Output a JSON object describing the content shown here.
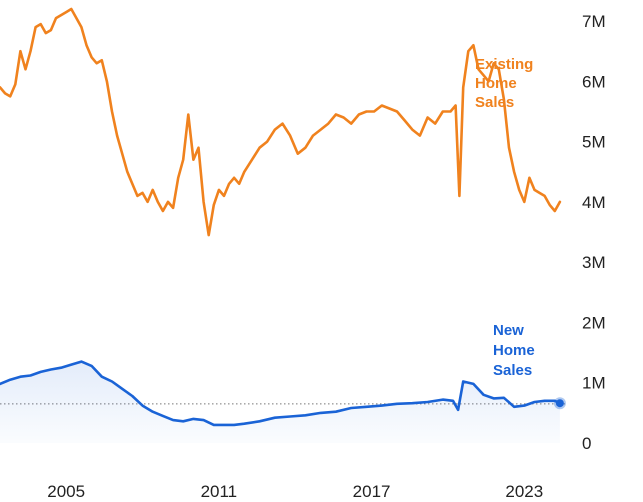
{
  "chart_data": {
    "type": "line",
    "x_unit": "year",
    "xlim": [
      2002.4,
      2024.6
    ],
    "ylim": [
      0,
      7.35
    ],
    "y_unit": "millions",
    "x_ticks": [
      {
        "value": 2005,
        "label": "2005"
      },
      {
        "value": 2011,
        "label": "2011"
      },
      {
        "value": 2017,
        "label": "2017"
      },
      {
        "value": 2023,
        "label": "2023"
      }
    ],
    "y_ticks": [
      {
        "value": 0,
        "label": "0"
      },
      {
        "value": 1,
        "label": "1M"
      },
      {
        "value": 2,
        "label": "2M"
      },
      {
        "value": 3,
        "label": "3M"
      },
      {
        "value": 4,
        "label": "4M"
      },
      {
        "value": 5,
        "label": "5M"
      },
      {
        "value": 6,
        "label": "6M"
      },
      {
        "value": 7,
        "label": "7M"
      }
    ],
    "reference_line": {
      "value": 0.65,
      "style": "dotted"
    },
    "series": [
      {
        "name": "Existing Home Sales",
        "label_lines": [
          "Existing",
          "Home",
          "Sales"
        ],
        "color": "#f0821e",
        "x": [
          2002.4,
          2002.6,
          2002.8,
          2003.0,
          2003.2,
          2003.4,
          2003.6,
          2003.8,
          2004.0,
          2004.2,
          2004.4,
          2004.6,
          2004.8,
          2005.0,
          2005.2,
          2005.4,
          2005.6,
          2005.8,
          2006.0,
          2006.2,
          2006.4,
          2006.6,
          2006.8,
          2007.0,
          2007.2,
          2007.4,
          2007.6,
          2007.8,
          2008.0,
          2008.2,
          2008.4,
          2008.6,
          2008.8,
          2009.0,
          2009.2,
          2009.4,
          2009.6,
          2009.8,
          2010.0,
          2010.2,
          2010.4,
          2010.6,
          2010.8,
          2011.0,
          2011.2,
          2011.4,
          2011.6,
          2011.8,
          2012.0,
          2012.3,
          2012.6,
          2012.9,
          2013.2,
          2013.5,
          2013.8,
          2014.1,
          2014.4,
          2014.7,
          2015.0,
          2015.3,
          2015.6,
          2015.9,
          2016.2,
          2016.5,
          2016.8,
          2017.1,
          2017.4,
          2017.7,
          2018.0,
          2018.3,
          2018.6,
          2018.9,
          2019.2,
          2019.5,
          2019.8,
          2020.1,
          2020.3,
          2020.45,
          2020.6,
          2020.8,
          2021.0,
          2021.2,
          2021.4,
          2021.6,
          2021.8,
          2022.0,
          2022.2,
          2022.4,
          2022.6,
          2022.8,
          2023.0,
          2023.2,
          2023.4,
          2023.6,
          2023.8,
          2024.0,
          2024.2,
          2024.4
        ],
        "values": [
          5.9,
          5.8,
          5.75,
          5.95,
          6.5,
          6.2,
          6.5,
          6.9,
          6.95,
          6.8,
          6.85,
          7.05,
          7.1,
          7.15,
          7.2,
          7.05,
          6.9,
          6.6,
          6.4,
          6.3,
          6.35,
          6.0,
          5.5,
          5.1,
          4.8,
          4.5,
          4.3,
          4.1,
          4.15,
          4.0,
          4.2,
          4.0,
          3.85,
          4.0,
          3.9,
          4.4,
          4.7,
          5.45,
          4.7,
          4.9,
          4.0,
          3.45,
          3.95,
          4.2,
          4.1,
          4.3,
          4.4,
          4.3,
          4.5,
          4.7,
          4.9,
          5.0,
          5.2,
          5.3,
          5.1,
          4.8,
          4.9,
          5.1,
          5.2,
          5.3,
          5.45,
          5.4,
          5.3,
          5.45,
          5.5,
          5.5,
          5.6,
          5.55,
          5.5,
          5.35,
          5.2,
          5.1,
          5.4,
          5.3,
          5.5,
          5.5,
          5.6,
          4.1,
          5.9,
          6.5,
          6.6,
          6.2,
          6.1,
          6.0,
          6.3,
          6.2,
          5.7,
          4.9,
          4.5,
          4.2,
          4.0,
          4.4,
          4.2,
          4.15,
          4.1,
          3.95,
          3.85,
          4.0
        ]
      },
      {
        "name": "New Home Sales",
        "label_lines": [
          "New",
          "Home",
          "Sales"
        ],
        "color": "#1a63d6",
        "x": [
          2002.4,
          2002.8,
          2003.2,
          2003.6,
          2004.0,
          2004.4,
          2004.8,
          2005.2,
          2005.6,
          2006.0,
          2006.4,
          2006.8,
          2007.2,
          2007.6,
          2008.0,
          2008.4,
          2008.8,
          2009.2,
          2009.6,
          2010.0,
          2010.4,
          2010.8,
          2011.2,
          2011.6,
          2012.0,
          2012.6,
          2013.2,
          2013.8,
          2014.4,
          2015.0,
          2015.6,
          2016.2,
          2016.8,
          2017.4,
          2018.0,
          2018.6,
          2019.2,
          2019.8,
          2020.2,
          2020.4,
          2020.6,
          2021.0,
          2021.4,
          2021.8,
          2022.2,
          2022.6,
          2023.0,
          2023.4,
          2023.8,
          2024.2,
          2024.4
        ],
        "values": [
          0.98,
          1.05,
          1.1,
          1.12,
          1.18,
          1.22,
          1.25,
          1.3,
          1.35,
          1.28,
          1.1,
          1.02,
          0.9,
          0.78,
          0.62,
          0.52,
          0.45,
          0.38,
          0.36,
          0.4,
          0.38,
          0.3,
          0.3,
          0.3,
          0.32,
          0.36,
          0.42,
          0.44,
          0.46,
          0.5,
          0.52,
          0.58,
          0.6,
          0.62,
          0.65,
          0.66,
          0.68,
          0.72,
          0.7,
          0.55,
          1.02,
          0.98,
          0.8,
          0.74,
          0.75,
          0.6,
          0.62,
          0.68,
          0.7,
          0.7,
          0.66
        ]
      }
    ]
  }
}
